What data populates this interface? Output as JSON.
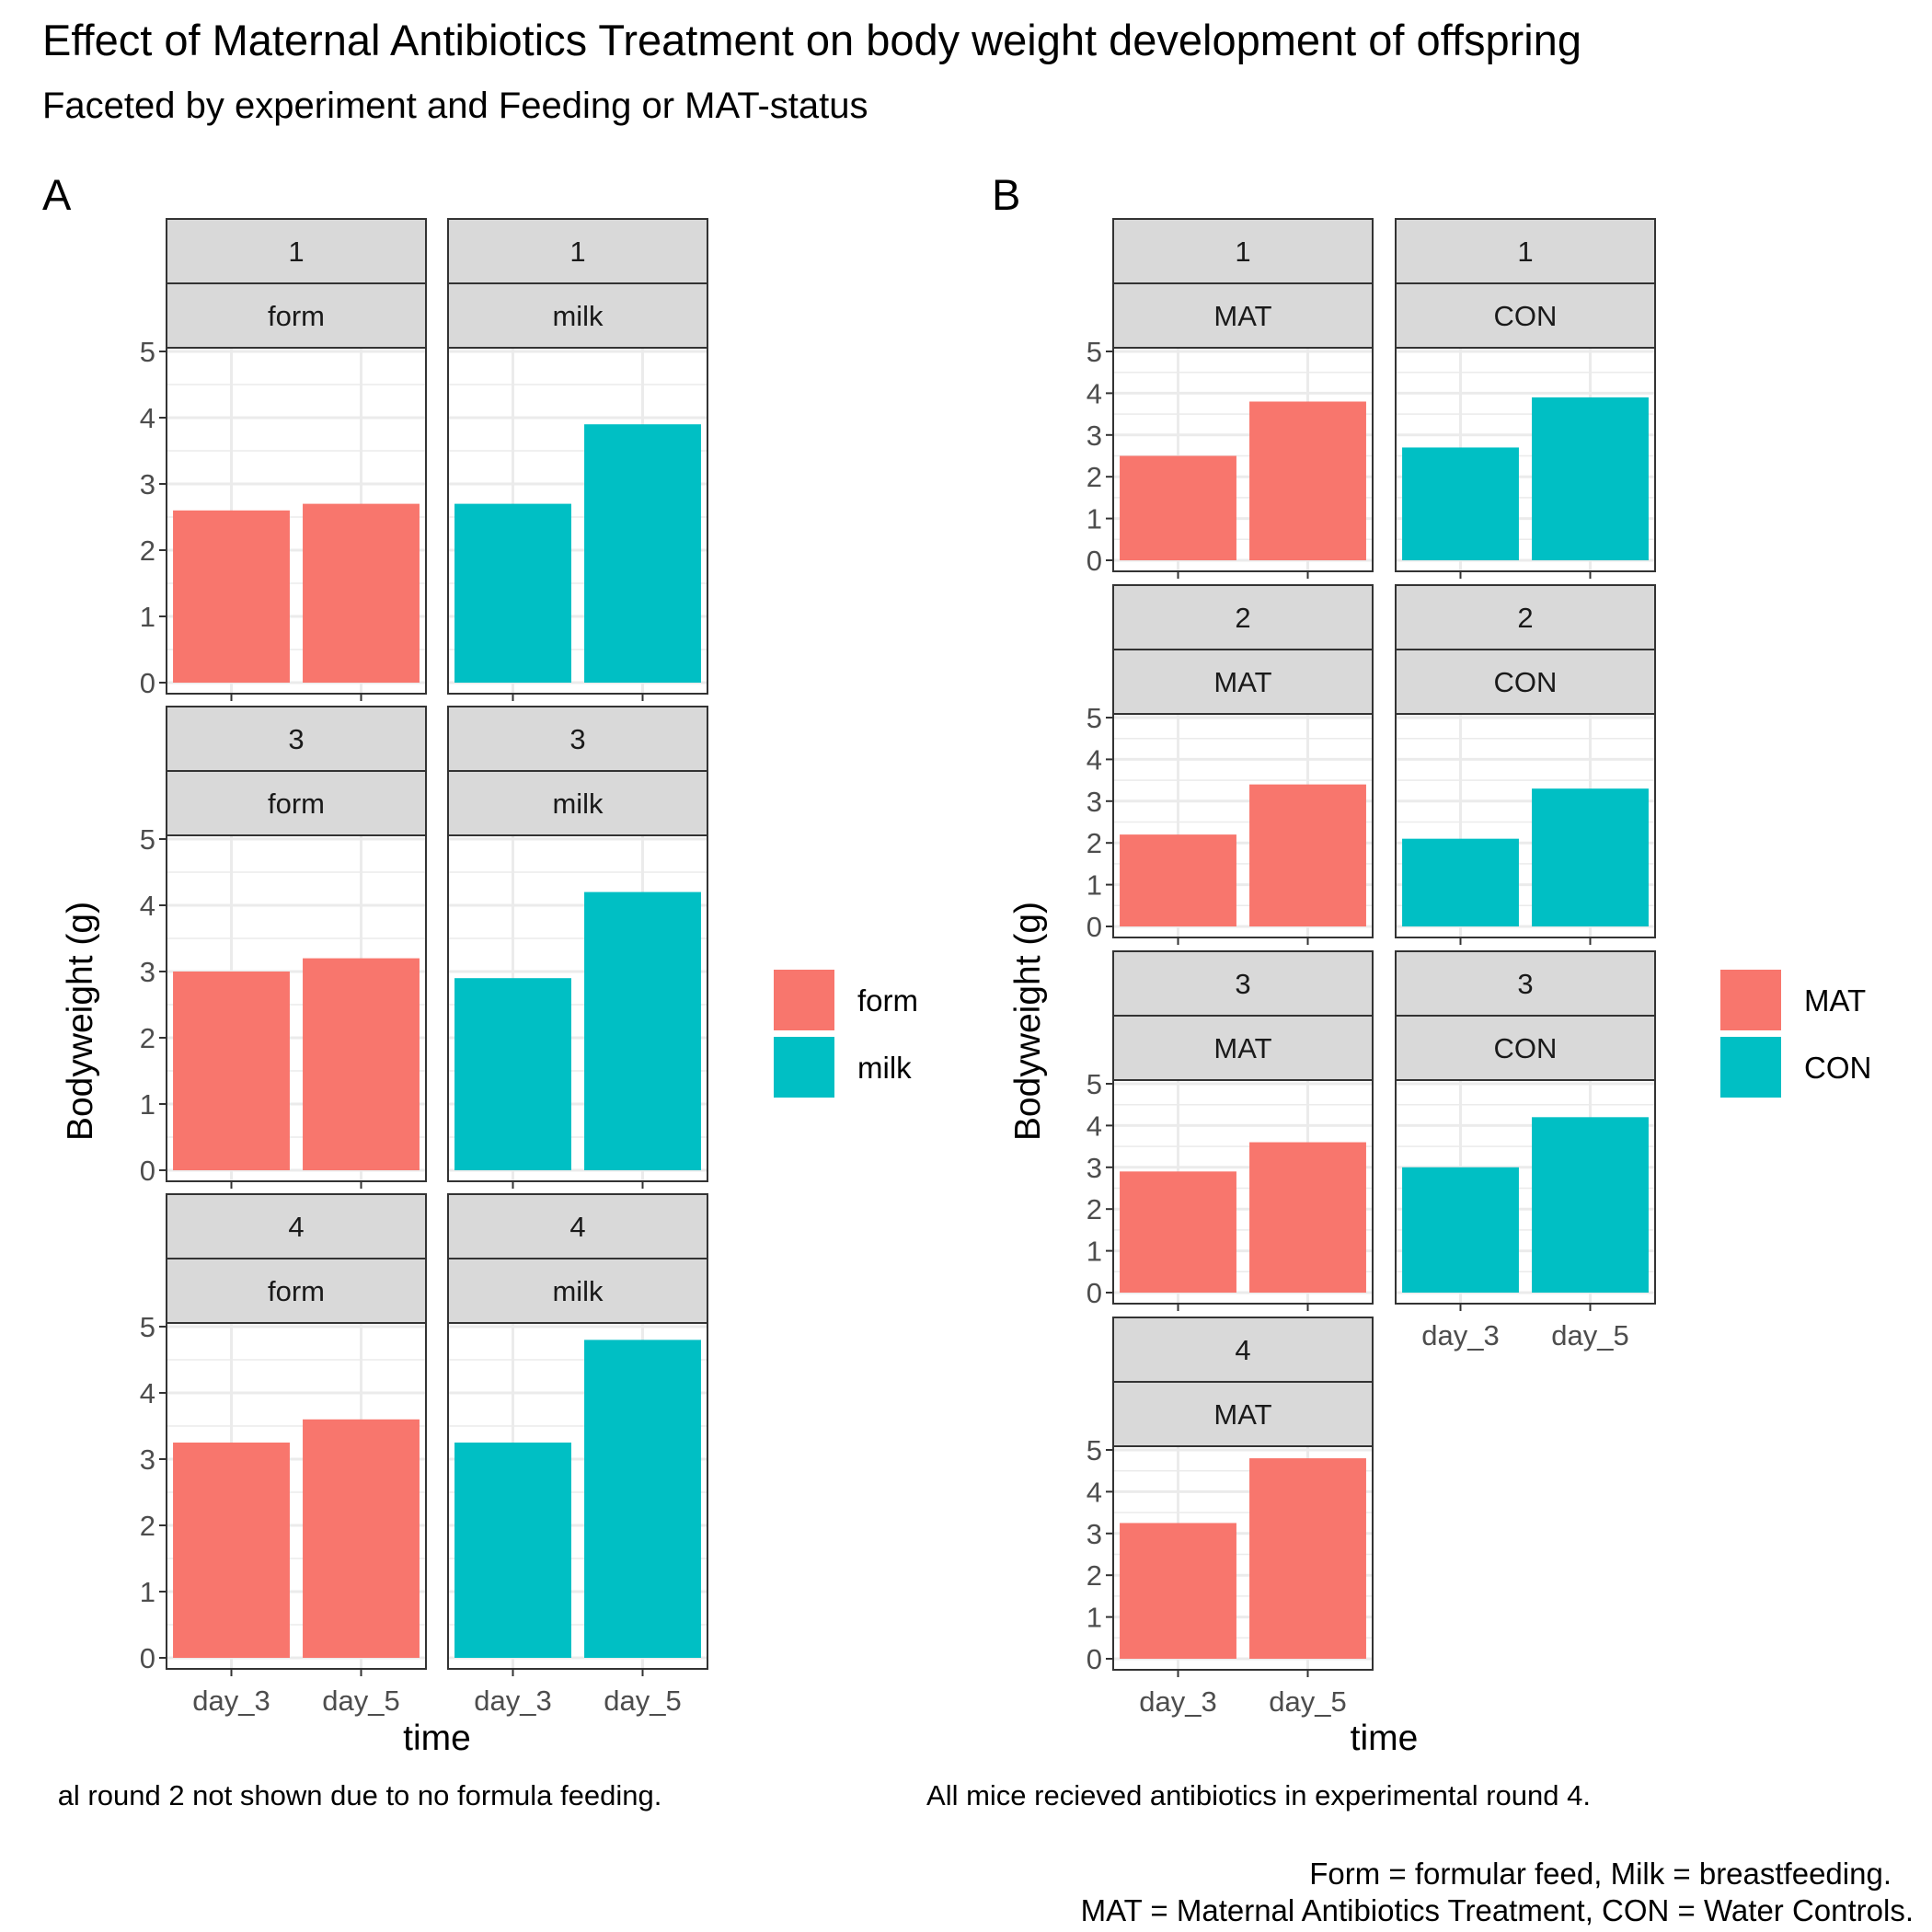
{
  "title": "Effect of Maternal Antibiotics Treatment on body weight development of offspring",
  "subtitle": "Faceted by experiment and Feeding or MAT-status",
  "caption_lines": [
    "Form = formular feed, Milk = breastfeeding.",
    "MAT = Maternal Antibiotics Treatment, CON = Water Controls."
  ],
  "colors": {
    "red": "#F8766D",
    "teal": "#00BFC4",
    "strip": "#D9D9D9",
    "grid": "#EBEBEB"
  },
  "chart_data": [
    {
      "type": "bar",
      "tag": "A",
      "xlabel": "time",
      "ylabel": "Bodyweight (g)",
      "note": "al round 2 not shown due to no formula feeding.",
      "categories": [
        "day_3",
        "day_5"
      ],
      "ylim": [
        0,
        5
      ],
      "yticks": [
        "0",
        "1",
        "2",
        "3",
        "4",
        "5"
      ],
      "grid": true,
      "legend": {
        "position": "right",
        "entries": [
          {
            "label": "form",
            "color": "#F8766D"
          },
          {
            "label": "milk",
            "color": "#00BFC4"
          }
        ]
      },
      "panels": [
        {
          "row": 0,
          "col": 0,
          "strip": [
            "1",
            "form"
          ],
          "fill": "#F8766D",
          "values": [
            2.6,
            2.7
          ]
        },
        {
          "row": 0,
          "col": 1,
          "strip": [
            "1",
            "milk"
          ],
          "fill": "#00BFC4",
          "values": [
            2.7,
            3.9
          ]
        },
        {
          "row": 1,
          "col": 0,
          "strip": [
            "3",
            "form"
          ],
          "fill": "#F8766D",
          "values": [
            3.0,
            3.2
          ]
        },
        {
          "row": 1,
          "col": 1,
          "strip": [
            "3",
            "milk"
          ],
          "fill": "#00BFC4",
          "values": [
            2.9,
            4.2
          ]
        },
        {
          "row": 2,
          "col": 0,
          "strip": [
            "4",
            "form"
          ],
          "fill": "#F8766D",
          "values": [
            3.25,
            3.6
          ]
        },
        {
          "row": 2,
          "col": 1,
          "strip": [
            "4",
            "milk"
          ],
          "fill": "#00BFC4",
          "values": [
            3.25,
            4.8
          ]
        }
      ]
    },
    {
      "type": "bar",
      "tag": "B",
      "xlabel": "time",
      "ylabel": "Bodyweight (g)",
      "note": "All mice recieved antibiotics in experimental round 4.",
      "categories": [
        "day_3",
        "day_5"
      ],
      "ylim": [
        0,
        5
      ],
      "yticks": [
        "0",
        "1",
        "2",
        "3",
        "4",
        "5"
      ],
      "grid": true,
      "legend": {
        "position": "right",
        "entries": [
          {
            "label": "MAT",
            "color": "#F8766D"
          },
          {
            "label": "CON",
            "color": "#00BFC4"
          }
        ]
      },
      "panels": [
        {
          "row": 0,
          "col": 0,
          "strip": [
            "1",
            "MAT"
          ],
          "fill": "#F8766D",
          "values": [
            2.5,
            3.8
          ]
        },
        {
          "row": 0,
          "col": 1,
          "strip": [
            "1",
            "CON"
          ],
          "fill": "#00BFC4",
          "values": [
            2.7,
            3.9
          ]
        },
        {
          "row": 1,
          "col": 0,
          "strip": [
            "2",
            "MAT"
          ],
          "fill": "#F8766D",
          "values": [
            2.2,
            3.4
          ]
        },
        {
          "row": 1,
          "col": 1,
          "strip": [
            "2",
            "CON"
          ],
          "fill": "#00BFC4",
          "values": [
            2.1,
            3.3
          ]
        },
        {
          "row": 2,
          "col": 0,
          "strip": [
            "3",
            "MAT"
          ],
          "fill": "#F8766D",
          "values": [
            2.9,
            3.6
          ]
        },
        {
          "row": 2,
          "col": 1,
          "strip": [
            "3",
            "CON"
          ],
          "fill": "#00BFC4",
          "values": [
            3.0,
            4.2
          ]
        },
        {
          "row": 3,
          "col": 0,
          "strip": [
            "4",
            "MAT"
          ],
          "fill": "#F8766D",
          "values": [
            3.25,
            4.8
          ]
        }
      ]
    }
  ]
}
